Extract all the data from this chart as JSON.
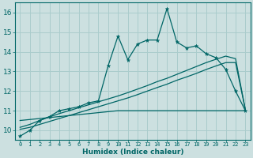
{
  "xlabel": "Humidex (Indice chaleur)",
  "xlim": [
    -0.5,
    23.5
  ],
  "ylim": [
    9.5,
    16.5
  ],
  "xticks": [
    0,
    1,
    2,
    3,
    4,
    5,
    6,
    7,
    8,
    9,
    10,
    11,
    12,
    13,
    14,
    15,
    16,
    17,
    18,
    19,
    20,
    21,
    22,
    23
  ],
  "yticks": [
    10,
    11,
    12,
    13,
    14,
    15,
    16
  ],
  "bg_color": "#cce0e0",
  "grid_color": "#aacccc",
  "line_color": "#006666",
  "main_x": [
    0,
    1,
    2,
    3,
    4,
    5,
    6,
    7,
    8,
    9,
    10,
    11,
    12,
    13,
    14,
    15,
    16,
    17,
    18,
    19,
    20,
    21,
    22,
    23
  ],
  "main_y": [
    9.7,
    10.0,
    10.5,
    10.7,
    11.0,
    11.1,
    11.2,
    11.4,
    11.5,
    13.3,
    14.8,
    13.6,
    14.4,
    14.6,
    14.6,
    16.2,
    14.5,
    14.2,
    14.3,
    13.9,
    13.7,
    13.1,
    12.0,
    11.0
  ],
  "trend1_y": [
    10.05,
    10.15,
    10.3,
    10.45,
    10.6,
    10.75,
    10.9,
    11.05,
    11.2,
    11.35,
    11.5,
    11.65,
    11.82,
    12.0,
    12.18,
    12.35,
    12.55,
    12.72,
    12.9,
    13.1,
    13.28,
    13.45,
    13.45,
    11.05
  ],
  "trend2_y": [
    10.15,
    10.3,
    10.5,
    10.68,
    10.85,
    11.0,
    11.15,
    11.3,
    11.45,
    11.6,
    11.75,
    11.92,
    12.1,
    12.28,
    12.48,
    12.65,
    12.85,
    13.05,
    13.25,
    13.45,
    13.62,
    13.78,
    13.65,
    11.05
  ],
  "flat_y": [
    10.5,
    10.55,
    10.6,
    10.65,
    10.7,
    10.75,
    10.8,
    10.85,
    10.9,
    10.95,
    11.0,
    11.0,
    11.0,
    11.0,
    11.0,
    11.0,
    11.0,
    11.0,
    11.0,
    11.0,
    11.0,
    11.0,
    11.0,
    11.0
  ]
}
